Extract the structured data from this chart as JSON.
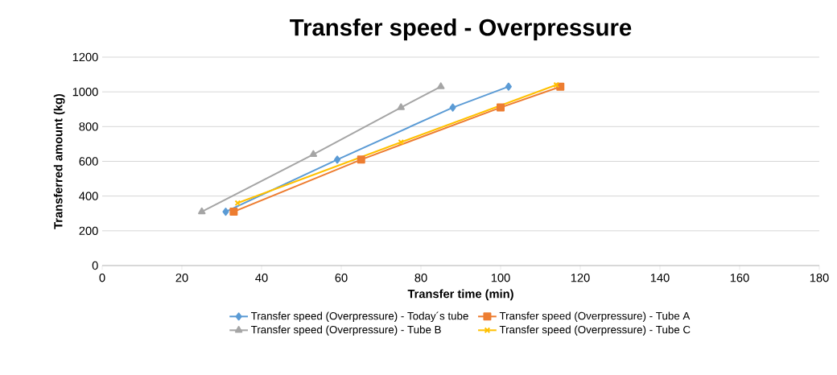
{
  "chart_data": {
    "type": "line",
    "title": "Transfer speed - Overpressure",
    "xlabel": "Transfer time (min)",
    "ylabel": "Transferred amount (kg)",
    "xlim": [
      0,
      180
    ],
    "xticks": [
      0,
      20,
      40,
      60,
      80,
      100,
      120,
      140,
      160,
      180
    ],
    "ylim": [
      0,
      1200
    ],
    "yticks": [
      0,
      200,
      400,
      600,
      800,
      1000,
      1200
    ],
    "grid": "y",
    "legend": "bottom",
    "series": [
      {
        "name": "Transfer speed (Overpressure) - Today´s tube",
        "color": "#5b9bd5",
        "marker": "diamond",
        "x": [
          31,
          59,
          88,
          102
        ],
        "values": [
          310,
          610,
          910,
          1030
        ]
      },
      {
        "name": "Transfer speed (Overpressure) - Tube A",
        "color": "#ed7d31",
        "marker": "square",
        "x": [
          33,
          65,
          100,
          115
        ],
        "values": [
          310,
          610,
          910,
          1030
        ]
      },
      {
        "name": "Transfer speed (Overpressure) - Tube B",
        "color": "#a5a5a5",
        "marker": "triangle",
        "x": [
          25,
          53,
          75,
          85
        ],
        "values": [
          310,
          640,
          910,
          1030
        ]
      },
      {
        "name": "Transfer speed (Overpressure) - Tube C",
        "color": "#ffc000",
        "marker": "cross",
        "x": [
          34,
          75,
          114
        ],
        "values": [
          360,
          710,
          1040
        ]
      }
    ]
  }
}
